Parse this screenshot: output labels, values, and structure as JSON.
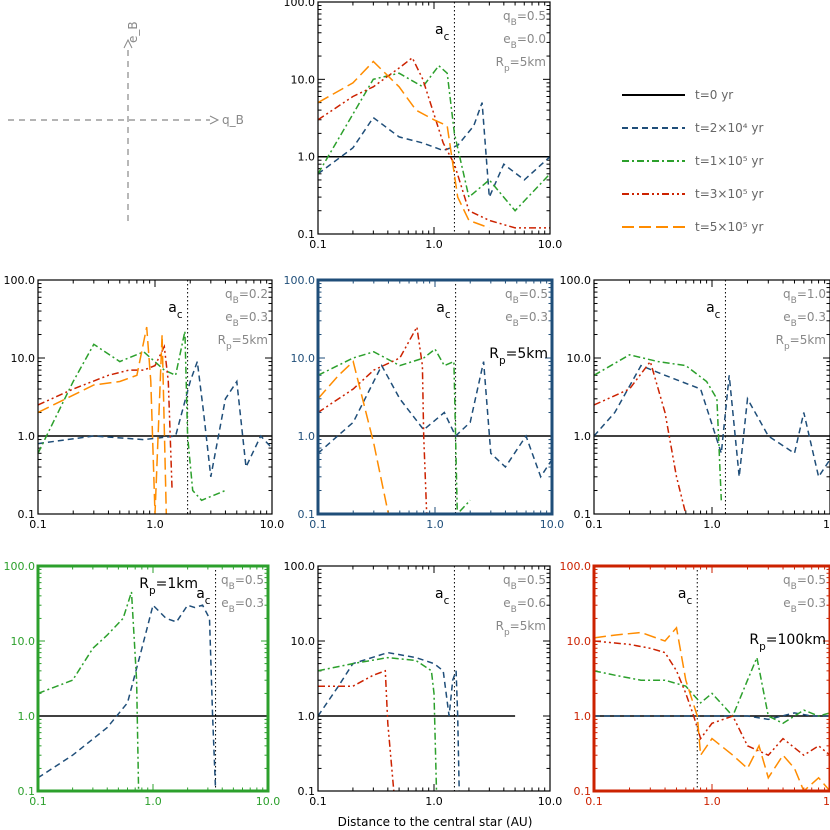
{
  "figure": {
    "xlabel": "Distance to the central star (AU)",
    "axes_key": {
      "vertical": "e_B",
      "horizontal": "q_B"
    }
  },
  "legend": {
    "placement": "top-right",
    "entries": [
      {
        "label": "t=0 yr",
        "color": "#000000",
        "dash": "solid"
      },
      {
        "label": "t=2×10⁴ yr",
        "color": "#1f4e79",
        "dash": "dashed"
      },
      {
        "label": "t=1×10⁵ yr",
        "color": "#2ca02c",
        "dash": "dash-dot"
      },
      {
        "label": "t=3×10⁵ yr",
        "color": "#cc2200",
        "dash": "dash-dot-dot"
      },
      {
        "label": "t=5×10⁵ yr",
        "color": "#ff8c00",
        "dash": "long-dash"
      }
    ]
  },
  "chart_data": [
    {
      "id": "p_qb05_eb00",
      "type": "line",
      "frame_color": "#000000",
      "xscale": "log",
      "yscale": "log",
      "xlim": [
        0.1,
        10
      ],
      "ylim": [
        0.1,
        100
      ],
      "xticks": [
        "0.1",
        "1.0",
        "10.0"
      ],
      "yticks": [
        "0.1",
        "1.0",
        "10.0",
        "100.0"
      ],
      "annotations": [
        "q_B=0.5",
        "e_B=0.0",
        "R_p=5km"
      ],
      "ac": 1.5,
      "ac_label": "a_c",
      "series": [
        {
          "name": "t=0 yr",
          "x": [
            0.1,
            10
          ],
          "y": [
            1,
            1
          ]
        },
        {
          "name": "t=2×10⁴ yr",
          "x": [
            0.1,
            0.2,
            0.3,
            0.5,
            0.8,
            1.2,
            1.6,
            2.2,
            2.6,
            3,
            4,
            6,
            10
          ],
          "y": [
            0.6,
            1.3,
            3.2,
            1.8,
            1.5,
            1.2,
            1.4,
            2.5,
            5,
            0.3,
            0.8,
            0.5,
            1.0
          ]
        },
        {
          "name": "t=1×10⁵ yr",
          "x": [
            0.1,
            0.3,
            0.5,
            0.8,
            1.1,
            1.3,
            1.5,
            2,
            3,
            5,
            10
          ],
          "y": [
            0.6,
            10,
            12,
            8,
            15,
            12,
            2,
            0.3,
            0.5,
            0.2,
            0.6
          ]
        },
        {
          "name": "t=3×10⁵ yr",
          "x": [
            0.1,
            0.2,
            0.3,
            0.5,
            0.65,
            0.8,
            1.2,
            1.5,
            2,
            3,
            5,
            10
          ],
          "y": [
            3,
            6,
            8,
            14,
            19,
            10,
            1.5,
            0.8,
            0.2,
            0.15,
            0.12,
            0.12
          ]
        },
        {
          "name": "t=5×10⁵ yr",
          "x": [
            0.1,
            0.2,
            0.3,
            0.5,
            0.7,
            1.0,
            1.3,
            1.6,
            2,
            3
          ],
          "y": [
            5,
            9,
            17,
            8,
            4,
            3,
            2.5,
            0.3,
            0.15,
            0.12
          ]
        }
      ]
    },
    {
      "id": "p_qb02_eb03",
      "type": "line",
      "frame_color": "#000000",
      "xscale": "log",
      "yscale": "log",
      "xlim": [
        0.1,
        10
      ],
      "ylim": [
        0.1,
        100
      ],
      "xticks": [
        "0.1",
        "1.0",
        "10.0"
      ],
      "yticks": [
        "0.1",
        "1.0",
        "10.0",
        "100.0"
      ],
      "annotations": [
        "q_B=0.2",
        "e_B=0.3",
        "R_p=5km"
      ],
      "ac": 1.9,
      "ac_label": "a_c",
      "series": [
        {
          "name": "t=0 yr",
          "x": [
            0.1,
            10
          ],
          "y": [
            1,
            1
          ]
        },
        {
          "name": "t=2×10⁴ yr",
          "x": [
            0.1,
            0.3,
            0.8,
            1.5,
            2.0,
            2.3,
            2.6,
            3,
            4,
            5,
            6,
            8,
            10
          ],
          "y": [
            0.8,
            1.0,
            0.9,
            1.0,
            5,
            9,
            2,
            0.3,
            3,
            5,
            0.4,
            1.0,
            0.7
          ]
        },
        {
          "name": "t=1×10⁵ yr",
          "x": [
            0.1,
            0.2,
            0.3,
            0.5,
            0.8,
            1.2,
            1.5,
            1.8,
            1.9,
            2.1,
            2.5,
            4
          ],
          "y": [
            0.6,
            5,
            15,
            9,
            12,
            7,
            6,
            22,
            1.0,
            0.2,
            0.15,
            0.2
          ]
        },
        {
          "name": "t=3×10⁵ yr",
          "x": [
            0.1,
            0.2,
            0.4,
            0.6,
            0.8,
            1.0,
            1.2,
            1.3,
            1.4
          ],
          "y": [
            2.5,
            4,
            6,
            7,
            7,
            8,
            14,
            5,
            0.2
          ]
        },
        {
          "name": "t=5×10⁵ yr",
          "x": [
            0.1,
            0.3,
            0.5,
            0.7,
            0.85,
            0.92,
            1.0,
            1.15,
            1.25
          ],
          "y": [
            2,
            4.5,
            5,
            6,
            25,
            5,
            0.1,
            20,
            0.1
          ]
        }
      ]
    },
    {
      "id": "p_qb05_eb03",
      "type": "line",
      "frame_color": "#1f4e79",
      "xscale": "log",
      "yscale": "log",
      "xlim": [
        0.1,
        10
      ],
      "ylim": [
        0.1,
        100
      ],
      "xticks": [
        "0.1",
        "1.0",
        "10.0"
      ],
      "yticks": [
        "0.1",
        "1.0",
        "10.0",
        "100.0"
      ],
      "annotations": [
        "q_B=0.5",
        "e_B=0.3"
      ],
      "big_label": "R_p=5km",
      "ac": 1.5,
      "ac_label": "a_c",
      "series": [
        {
          "name": "t=0 yr",
          "x": [
            0.1,
            10
          ],
          "y": [
            1,
            1
          ]
        },
        {
          "name": "t=2×10⁴ yr",
          "x": [
            0.1,
            0.2,
            0.35,
            0.5,
            0.8,
            1.2,
            1.5,
            2.0,
            2.6,
            3,
            4,
            6,
            8,
            10
          ],
          "y": [
            0.6,
            1.5,
            8,
            3,
            1.2,
            2,
            1.0,
            1.5,
            9,
            0.6,
            0.4,
            1.0,
            0.3,
            0.5
          ]
        },
        {
          "name": "t=1×10⁵ yr",
          "x": [
            0.1,
            0.2,
            0.3,
            0.5,
            0.8,
            1.0,
            1.2,
            1.45,
            1.55,
            2
          ],
          "y": [
            6,
            10,
            12,
            8,
            10,
            13,
            8,
            9,
            0.1,
            0.15
          ]
        },
        {
          "name": "t=3×10⁵ yr",
          "x": [
            0.1,
            0.2,
            0.3,
            0.5,
            0.7,
            0.78,
            0.8,
            0.85
          ],
          "y": [
            2,
            4,
            7,
            10,
            25,
            8,
            1.0,
            0.1
          ]
        },
        {
          "name": "t=5×10⁵ yr",
          "x": [
            0.1,
            0.15,
            0.2,
            0.3,
            0.4
          ],
          "y": [
            3,
            6,
            9,
            0.8,
            0.1
          ]
        }
      ]
    },
    {
      "id": "p_qb10_eb03",
      "type": "line",
      "frame_color": "#000000",
      "xscale": "log",
      "yscale": "log",
      "xlim": [
        0.1,
        10
      ],
      "ylim": [
        0.1,
        100
      ],
      "xticks": [
        "0.1",
        "1.0",
        "10"
      ],
      "yticks": [
        "0.1",
        "1.0",
        "10.0",
        "100.0"
      ],
      "annotations": [
        "q_B=1.0",
        "e_B=0.3",
        "R_p=5km"
      ],
      "ac": 1.3,
      "ac_label": "a_c",
      "series": [
        {
          "name": "t=0 yr",
          "x": [
            0.1,
            10
          ],
          "y": [
            1,
            1
          ]
        },
        {
          "name": "t=2×10⁴ yr",
          "x": [
            0.1,
            0.15,
            0.25,
            0.4,
            0.8,
            1.2,
            1.4,
            1.7,
            2.0,
            3,
            5,
            6,
            8,
            10
          ],
          "y": [
            1.0,
            2,
            8,
            6,
            4,
            0.6,
            6,
            0.3,
            3,
            1.0,
            0.6,
            2,
            0.3,
            0.5
          ]
        },
        {
          "name": "t=1×10⁵ yr",
          "x": [
            0.1,
            0.2,
            0.35,
            0.6,
            0.9,
            1.1,
            1.2
          ],
          "y": [
            6,
            11,
            9,
            8,
            5,
            3,
            0.15
          ]
        },
        {
          "name": "t=3×10⁵ yr",
          "x": [
            0.1,
            0.2,
            0.3,
            0.4,
            0.5,
            0.6
          ],
          "y": [
            2.5,
            4,
            9,
            2,
            0.3,
            0.1
          ]
        }
      ]
    },
    {
      "id": "p_qb05_eb03_rp1",
      "type": "line",
      "frame_color": "#2ca02c",
      "xscale": "log",
      "yscale": "log",
      "xlim": [
        0.1,
        10
      ],
      "ylim": [
        0.1,
        100
      ],
      "xticks": [
        "0.1",
        "1.0",
        "10.0"
      ],
      "yticks": [
        "0.1",
        "1.0",
        "10.0",
        "100.0"
      ],
      "annotations": [
        "q_B=0.5",
        "e_B=0.3"
      ],
      "big_label": "R_p=1km",
      "ac": 3.5,
      "ac_label": "a_c",
      "series": [
        {
          "name": "t=0 yr",
          "x": [
            0.1,
            10
          ],
          "y": [
            1,
            1
          ]
        },
        {
          "name": "t=2×10⁴ yr",
          "x": [
            0.1,
            0.2,
            0.4,
            0.6,
            0.8,
            1.0,
            1.3,
            1.6,
            2.0,
            2.3,
            2.7,
            3.1,
            3.3,
            3.5
          ],
          "y": [
            0.15,
            0.3,
            0.7,
            1.5,
            8,
            30,
            20,
            18,
            30,
            28,
            30,
            20,
            1.0,
            0.1
          ]
        },
        {
          "name": "t=1×10⁵ yr",
          "x": [
            0.1,
            0.2,
            0.3,
            0.4,
            0.55,
            0.65,
            0.72,
            0.75
          ],
          "y": [
            2,
            3,
            8,
            12,
            20,
            45,
            3,
            0.1
          ]
        }
      ]
    },
    {
      "id": "p_qb05_eb06",
      "type": "line",
      "frame_color": "#000000",
      "xscale": "log",
      "yscale": "log",
      "xlim": [
        0.1,
        10
      ],
      "ylim": [
        0.1,
        100
      ],
      "xticks": [
        "0.1",
        "1.0",
        "10.0"
      ],
      "yticks": [
        "0.1",
        "1.0",
        "10.0",
        "100.0"
      ],
      "annotations": [
        "q_B=0.5",
        "e_B=0.6",
        "R_p=5km"
      ],
      "ac": 1.5,
      "ac_label": "a_c",
      "series": [
        {
          "name": "t=0 yr",
          "x": [
            0.1,
            5
          ],
          "y": [
            1,
            1
          ]
        },
        {
          "name": "t=2×10⁴ yr",
          "x": [
            0.1,
            0.15,
            0.2,
            0.4,
            0.7,
            1.0,
            1.2,
            1.35,
            1.45,
            1.55,
            1.6,
            1.65
          ],
          "y": [
            1.0,
            2.5,
            5,
            7,
            6,
            5,
            4,
            1.0,
            3,
            4,
            1.0,
            0.1
          ]
        },
        {
          "name": "t=1×10⁵ yr",
          "x": [
            0.1,
            0.2,
            0.4,
            0.7,
            0.95,
            1.0,
            1.05
          ],
          "y": [
            4,
            5,
            6,
            5.5,
            4,
            2,
            0.1
          ]
        },
        {
          "name": "t=3×10⁵ yr",
          "x": [
            0.1,
            0.2,
            0.3,
            0.38,
            0.4,
            0.45
          ],
          "y": [
            2.5,
            2.5,
            3.5,
            4,
            0.8,
            0.1
          ]
        }
      ]
    },
    {
      "id": "p_qb05_eb03_rp100",
      "type": "line",
      "frame_color": "#cc2200",
      "xscale": "log",
      "yscale": "log",
      "xlim": [
        0.1,
        10
      ],
      "ylim": [
        0.1,
        100
      ],
      "xticks": [
        "0.1",
        "1.0",
        "10"
      ],
      "yticks": [
        "0.1",
        "1.0",
        "10.0",
        "100.0"
      ],
      "annotations": [
        "q_B=0.5",
        "e_B=0.3"
      ],
      "big_label": "R_p=100km",
      "ac": 0.75,
      "ac_label": "a_c",
      "series": [
        {
          "name": "t=0 yr",
          "x": [
            0.1,
            10
          ],
          "y": [
            1,
            1
          ]
        },
        {
          "name": "t=2×10⁴ yr",
          "x": [
            0.1,
            0.5,
            0.8,
            1.2,
            2,
            3,
            5,
            7,
            10
          ],
          "y": [
            1.0,
            1.0,
            1.0,
            1.0,
            1.0,
            0.9,
            1.1,
            1.0,
            1.0
          ]
        },
        {
          "name": "t=1×10⁵ yr",
          "x": [
            0.1,
            0.15,
            0.25,
            0.4,
            0.6,
            0.8,
            1.0,
            1.5,
            2,
            2.4,
            3,
            4,
            6,
            8,
            10
          ],
          "y": [
            4,
            3.5,
            3,
            3,
            2.5,
            1.5,
            2,
            1.0,
            3,
            6,
            1.0,
            0.8,
            1.2,
            1.0,
            1.1
          ]
        },
        {
          "name": "t=3×10⁵ yr",
          "x": [
            0.1,
            0.2,
            0.3,
            0.4,
            0.5,
            0.6,
            0.7,
            0.8,
            1.0,
            1.5,
            2,
            3,
            4,
            6,
            8,
            10
          ],
          "y": [
            10,
            9,
            8,
            7,
            4,
            2,
            1.0,
            0.5,
            0.8,
            1.0,
            0.4,
            0.3,
            0.5,
            0.3,
            0.4,
            0.3
          ]
        },
        {
          "name": "t=5×10⁵ yr",
          "x": [
            0.1,
            0.15,
            0.25,
            0.4,
            0.5,
            0.6,
            0.75,
            0.8,
            1.0,
            1.5,
            2,
            2.5,
            3,
            4,
            5,
            6,
            8,
            10
          ],
          "y": [
            11,
            12,
            13,
            10,
            15,
            3,
            1.0,
            0.3,
            0.5,
            0.3,
            0.2,
            0.4,
            0.15,
            0.3,
            0.2,
            0.1,
            0.15,
            0.1
          ]
        }
      ]
    }
  ]
}
